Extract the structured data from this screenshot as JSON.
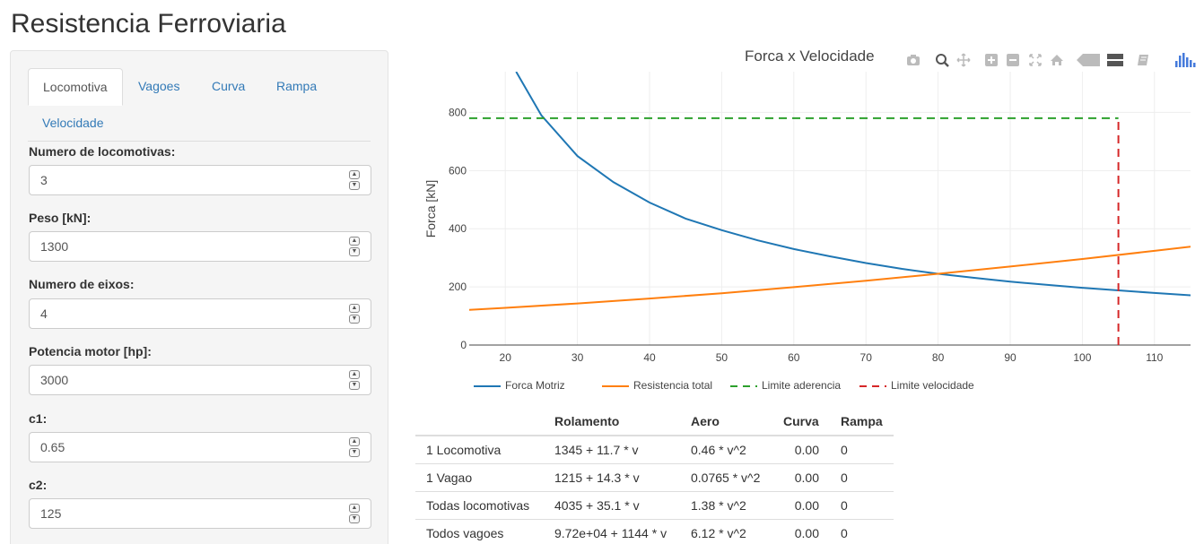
{
  "page": {
    "title": "Resistencia Ferroviaria"
  },
  "tabs": [
    {
      "label": "Locomotiva",
      "active": true
    },
    {
      "label": "Vagoes",
      "active": false
    },
    {
      "label": "Curva",
      "active": false
    },
    {
      "label": "Rampa",
      "active": false
    },
    {
      "label": "Velocidade",
      "active": false
    }
  ],
  "fields": [
    {
      "label": "Numero de locomotivas:",
      "value": "3"
    },
    {
      "label": "Peso [kN]:",
      "value": "1300"
    },
    {
      "label": "Numero de eixos:",
      "value": "4"
    },
    {
      "label": "Potencia motor [hp]:",
      "value": "3000"
    },
    {
      "label": "c1:",
      "value": "0.65"
    },
    {
      "label": "c2:",
      "value": "125"
    }
  ],
  "modebar_icons": [
    "camera-icon",
    "zoom-icon",
    "pan-icon",
    "zoom-in-icon",
    "zoom-out-icon",
    "autoscale-icon",
    "home-icon",
    "hover-closest-icon",
    "hover-compare-icon",
    "toggle-spikelines-icon",
    "plotly-logo-icon"
  ],
  "chart_data": {
    "type": "line",
    "title": "Forca x Velocidade",
    "xlabel": "",
    "ylabel": "Forca [kN]",
    "xlim": [
      15,
      115
    ],
    "ylim": [
      0,
      940
    ],
    "xticks": [
      20,
      30,
      40,
      50,
      60,
      70,
      80,
      90,
      100,
      110
    ],
    "yticks": [
      0,
      200,
      400,
      600,
      800
    ],
    "grid": true,
    "legend_position": "bottom",
    "series": [
      {
        "name": "Forca Motriz",
        "color": "#1f77b4",
        "dash": "solid",
        "x": [
          21.5,
          25,
          30,
          35,
          40,
          45,
          50,
          55,
          60,
          65,
          70,
          75,
          80,
          85,
          90,
          95,
          100,
          105,
          110,
          115
        ],
        "y": [
          940,
          790,
          650,
          560,
          490,
          435,
          395,
          360,
          330,
          305,
          282,
          262,
          245,
          231,
          218,
          207,
          197,
          188,
          179,
          171
        ]
      },
      {
        "name": "Resistencia total",
        "color": "#ff7f0e",
        "dash": "solid",
        "x": [
          15,
          20,
          30,
          40,
          50,
          60,
          70,
          80,
          90,
          100,
          110,
          115
        ],
        "y": [
          121,
          128,
          143,
          160,
          178,
          199,
          221,
          245,
          270,
          296,
          324,
          338
        ]
      },
      {
        "name": "Limite aderencia",
        "color": "#2ca02c",
        "dash": "dash",
        "x": [
          15,
          105
        ],
        "y": [
          780,
          780
        ]
      },
      {
        "name": "Limite velocidade",
        "color": "#d62728",
        "dash": "dash",
        "x": [
          105,
          105
        ],
        "y": [
          0,
          780
        ]
      }
    ]
  },
  "table": {
    "headers": [
      "",
      "Rolamento",
      "Aero",
      "Curva",
      "Rampa"
    ],
    "rows": [
      [
        "1 Locomotiva",
        "1345 + 11.7 * v",
        "0.46 * v^2",
        "0.00",
        "0"
      ],
      [
        "1 Vagao",
        "1215 + 14.3 * v",
        "0.0765 * v^2",
        "0.00",
        "0"
      ],
      [
        "Todas locomotivas",
        "4035 + 35.1 * v",
        "1.38 * v^2",
        "0.00",
        "0"
      ],
      [
        "Todos vagoes",
        "9.72e+04 + 1144 * v",
        "6.12 * v^2",
        "0.00",
        "0"
      ]
    ]
  }
}
